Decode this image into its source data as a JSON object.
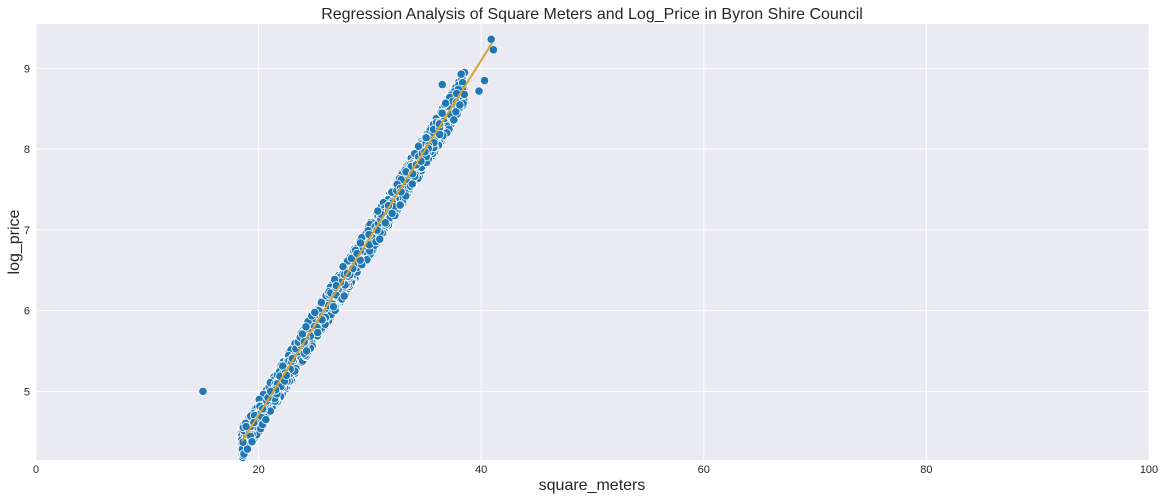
{
  "chart_data": {
    "type": "scatter",
    "title": "Regression Analysis of Square Meters and Log_Price in Byron Shire Council",
    "xlabel": "square_meters",
    "ylabel": "log_price",
    "xlim": [
      0,
      100
    ],
    "ylim": [
      4.15,
      9.55
    ],
    "xticks": [
      0,
      20,
      40,
      60,
      80,
      100
    ],
    "yticks": [
      5,
      6,
      7,
      8,
      9
    ],
    "grid": true,
    "colors": {
      "background": "#eaeaf2",
      "grid": "#ffffff",
      "points": "#1f77b4",
      "point_edge": "#ffffff",
      "regression_line": "#d6a336"
    },
    "regression_line": {
      "x": [
        18.5,
        41.0
      ],
      "y": [
        4.38,
        9.32
      ]
    },
    "outliers": [
      {
        "x": 15.0,
        "y": 5.0
      },
      {
        "x": 18.6,
        "y": 4.37
      },
      {
        "x": 40.9,
        "y": 9.36
      },
      {
        "x": 41.1,
        "y": 9.23
      },
      {
        "x": 38.2,
        "y": 8.93
      },
      {
        "x": 36.5,
        "y": 8.8
      },
      {
        "x": 36.8,
        "y": 8.57
      },
      {
        "x": 39.8,
        "y": 8.72
      },
      {
        "x": 40.3,
        "y": 8.85
      },
      {
        "x": 37.8,
        "y": 8.69
      }
    ],
    "cloud": {
      "x_range": [
        18.5,
        38.5
      ],
      "slope": 0.2195,
      "intercept": 0.3,
      "spread": 0.2,
      "n_points": 1400,
      "note_seed": 7
    }
  }
}
